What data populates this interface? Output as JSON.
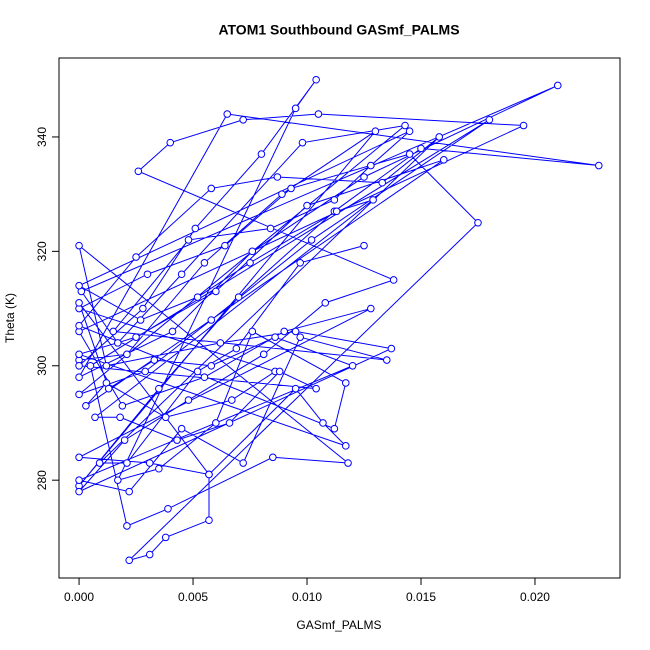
{
  "chart_data": {
    "type": "line",
    "markers": true,
    "color": "#0000ff",
    "title": "ATOM1 Southbound GASmf_PALMS",
    "x_label": "GASmf_PALMS",
    "y_label": "Theta (K)",
    "xlim": [
      -0.00088,
      0.02373
    ],
    "ylim": [
      262.9,
      353.8
    ],
    "xticks": [
      {
        "value": 0,
        "label": "0.000"
      },
      {
        "value": 0.005,
        "label": "0.005"
      },
      {
        "value": 0.01,
        "label": "0.010"
      },
      {
        "value": 0.015,
        "label": "0.015"
      },
      {
        "value": 0.02,
        "label": "0.020"
      }
    ],
    "yticks": [
      280,
      300,
      320,
      340
    ],
    "x": [
      0.0,
      0.0021,
      0.0055,
      0.0089,
      0.013,
      0.0,
      0.0035,
      0.007,
      0.0112,
      0.015,
      0.0228,
      0.0065,
      0.0,
      0.0041,
      0.0076,
      0.0125,
      0.021,
      0.0001,
      0.0017,
      0.0045,
      0.0098,
      0.0143,
      0.0,
      0.0029,
      0.0058,
      0.0102,
      0.018,
      0.0005,
      0.0021,
      0.0039,
      0.0085,
      0.0118,
      0.0,
      0.0012,
      0.0062,
      0.0095,
      0.0137,
      0.0,
      0.002,
      0.0048,
      0.0081,
      0.0108,
      0.0138,
      0.0026,
      0.004,
      0.0072,
      0.0105,
      0.0195,
      0.0,
      0.0019,
      0.0055,
      0.009,
      0.0128,
      0.0,
      0.0031,
      0.0057,
      0.0095,
      0.0107,
      0.0117,
      0.0,
      0.0025,
      0.006,
      0.01,
      0.016,
      0.0003,
      0.0012,
      0.0038,
      0.0067,
      0.0086,
      0.0,
      0.003,
      0.0064,
      0.0093,
      0.0145,
      0.0175,
      0.0022,
      0.0031,
      0.0038,
      0.0057,
      0.0057,
      0.0,
      0.0013,
      0.0033,
      0.0058,
      0.0086,
      0.012,
      0.0,
      0.0022,
      0.0045,
      0.0072,
      0.0097,
      0.0135,
      0.0015,
      0.0048,
      0.0084,
      0.0112,
      0.0128,
      0.0145,
      0.0,
      0.0027,
      0.0052,
      0.0075,
      0.0113,
      0.0129,
      0.0007,
      0.0018,
      0.0043,
      0.0066,
      0.0088,
      0.0104,
      0.0,
      0.0028,
      0.0051,
      0.008,
      0.0104,
      0.0095,
      0.0017,
      0.0035,
      0.006,
      0.0076,
      0.0117,
      0.0112,
      0.0,
      0.0025,
      0.0058,
      0.0087,
      0.0133,
      0.0158,
      0.0009,
      0.0021,
      0.0052,
      0.0069,
      0.0097,
      0.0125
    ],
    "values": [
      301,
      302,
      318,
      330,
      341,
      279,
      296,
      312,
      327,
      338,
      335,
      344,
      298,
      306,
      320,
      333,
      349,
      313,
      304,
      316,
      339,
      342,
      295,
      299,
      308,
      322,
      343,
      300,
      272,
      275,
      284,
      283,
      321,
      300,
      304,
      306,
      303,
      278,
      287,
      294,
      302,
      311,
      315,
      334,
      339,
      343,
      344,
      342,
      306,
      293,
      298,
      306,
      310,
      284,
      283,
      281,
      296,
      290,
      286,
      302,
      305,
      313,
      328,
      336,
      293,
      297,
      291,
      294,
      299,
      310,
      316,
      321,
      331,
      337,
      325,
      266,
      267,
      270,
      273,
      281,
      311,
      296,
      301,
      300,
      305,
      300,
      280,
      278,
      289,
      283,
      305,
      301,
      306,
      322,
      324,
      329,
      335,
      341,
      314,
      308,
      312,
      318,
      327,
      329,
      291,
      291,
      287,
      290,
      299,
      296,
      300,
      310,
      324,
      337,
      350,
      345,
      280,
      282,
      290,
      306,
      297,
      289,
      307,
      319,
      331,
      333,
      332,
      340,
      283,
      283,
      299,
      303,
      318,
      321
    ]
  }
}
